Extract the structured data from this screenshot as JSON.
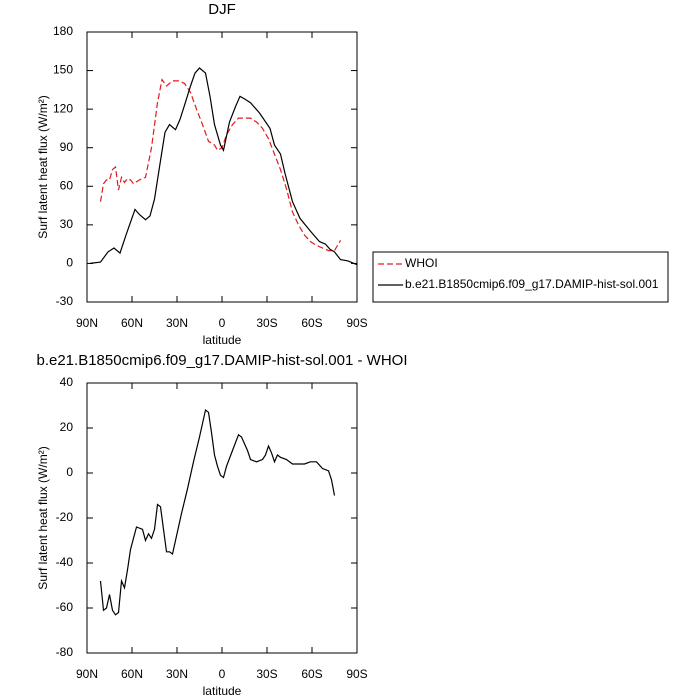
{
  "chart_data": [
    {
      "type": "line",
      "title": "DJF",
      "xlabel": "latitude",
      "ylabel": "Surf latent heat flux (W/m²)",
      "xlim": [
        90,
        -90
      ],
      "xticks": [
        {
          "value": 90,
          "label": "90N"
        },
        {
          "value": 60,
          "label": "60N"
        },
        {
          "value": 30,
          "label": "30N"
        },
        0,
        {
          "value": -30,
          "label": "30S"
        },
        {
          "value": -60,
          "label": "60S"
        },
        {
          "value": -90,
          "label": "90S"
        }
      ],
      "ylim": [
        -30,
        180
      ],
      "yticks": [
        -30,
        0,
        30,
        60,
        90,
        120,
        150,
        180
      ],
      "legend": "right",
      "series": [
        {
          "name": "WHOI",
          "color": "#e31a1c",
          "line_style": "dashed",
          "x": [
            81,
            79,
            77,
            75,
            73,
            71,
            69,
            67,
            65,
            63,
            61,
            59,
            55,
            51,
            47,
            43,
            40,
            37,
            33,
            29,
            25,
            21,
            17,
            13,
            9,
            5,
            3,
            0,
            -3,
            -7,
            -11,
            -15,
            -19,
            -23,
            -27,
            -31,
            -35,
            -39,
            -43,
            -47,
            -51,
            -55,
            -59,
            -63,
            -67,
            -71,
            -75,
            -79
          ],
          "values": [
            48,
            62,
            65,
            65,
            73,
            75,
            57,
            67,
            63,
            66,
            65,
            62,
            65,
            67,
            90,
            125,
            143,
            138,
            142,
            142,
            140,
            133,
            120,
            108,
            95,
            92,
            88,
            90,
            100,
            108,
            113,
            113,
            113,
            110,
            105,
            97,
            85,
            73,
            58,
            40,
            30,
            22,
            17,
            14,
            12,
            10,
            10,
            18
          ]
        },
        {
          "name": "b.e21.B1850cmip6.f09_g17.DAMIP-hist-sol.001",
          "color": "#000000",
          "line_style": "solid",
          "x": [
            88,
            81,
            76,
            72,
            68,
            64,
            58,
            55,
            51,
            48,
            45,
            41,
            38,
            35,
            31,
            28,
            25,
            21,
            18,
            15,
            11,
            8,
            5,
            1,
            -1,
            -5,
            -9,
            -12,
            -15,
            -19,
            -25,
            -32,
            -35,
            -39,
            -42,
            -47,
            -52,
            -59,
            -65,
            -69,
            -72,
            -75,
            -79,
            -84,
            -90
          ],
          "values": [
            0,
            1,
            9,
            12,
            8,
            22,
            42,
            38,
            34,
            37,
            50,
            80,
            102,
            108,
            104,
            112,
            123,
            138,
            148,
            152,
            148,
            130,
            108,
            92,
            88,
            110,
            122,
            130,
            128,
            125,
            117,
            105,
            92,
            85,
            70,
            48,
            35,
            25,
            17,
            15,
            11,
            9,
            3,
            2,
            -1
          ]
        }
      ]
    },
    {
      "type": "line",
      "title": "b.e21.B1850cmip6.f09_g17.DAMIP-hist-sol.001 - WHOI",
      "xlabel": "latitude",
      "ylabel": "Surf latent heat flux (W/m²)",
      "xlim": [
        90,
        -90
      ],
      "xticks": [
        {
          "value": 90,
          "label": "90N"
        },
        {
          "value": 60,
          "label": "60N"
        },
        {
          "value": 30,
          "label": "30N"
        },
        0,
        {
          "value": -30,
          "label": "30S"
        },
        {
          "value": -60,
          "label": "60S"
        },
        {
          "value": -90,
          "label": "90S"
        }
      ],
      "ylim": [
        -80,
        40
      ],
      "yticks": [
        -80,
        -60,
        -40,
        -20,
        0,
        20,
        40
      ],
      "color": "#000000",
      "x": [
        81,
        79,
        77,
        75,
        73,
        71,
        69,
        67,
        65,
        63,
        61,
        57,
        53,
        51,
        49,
        47,
        45,
        43,
        41,
        39,
        37,
        35,
        33,
        31,
        27,
        23,
        19,
        15,
        11,
        9,
        7,
        5,
        3,
        1,
        -1,
        -3,
        -7,
        -11,
        -13,
        -17,
        -19,
        -23,
        -27,
        -29,
        -31,
        -33,
        -35,
        -37,
        -39,
        -43,
        -47,
        -55,
        -59,
        -63,
        -67,
        -71,
        -73,
        -75
      ],
      "values": [
        -48,
        -61,
        -60,
        -54,
        -61,
        -63,
        -62,
        -48,
        -51,
        -43,
        -34,
        -24,
        -25,
        -30,
        -27,
        -29,
        -25,
        -14,
        -15,
        -25,
        -35,
        -35,
        -36,
        -30,
        -18,
        -7,
        5,
        16,
        28,
        27,
        18,
        8,
        3,
        -1,
        -2,
        3,
        10,
        17,
        16,
        10,
        6,
        5,
        6,
        8,
        12,
        9,
        5,
        8,
        7,
        6,
        4,
        4,
        5,
        5,
        2,
        1,
        -3,
        -10
      ]
    }
  ]
}
